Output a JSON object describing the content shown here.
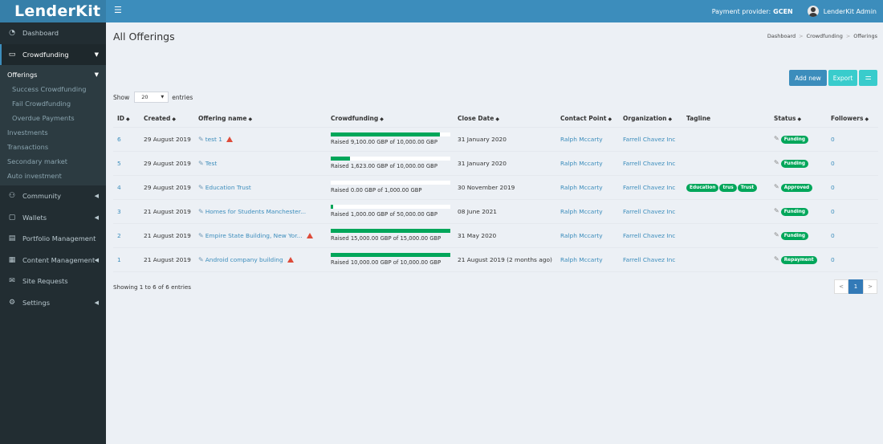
{
  "app": {
    "logo": "LenderKit"
  },
  "header": {
    "menu_icon": "hamburger-icon",
    "payment_label": "Payment provider:",
    "payment_value": "GCEN",
    "user_name": "LenderKit Admin"
  },
  "sidebar": {
    "items": [
      {
        "label": "Dashboard",
        "icon": "dashboard-icon"
      },
      {
        "label": "Crowdfunding",
        "icon": "crowdfunding-icon"
      },
      {
        "label": "Community",
        "icon": "community-icon"
      },
      {
        "label": "Wallets",
        "icon": "wallet-icon"
      },
      {
        "label": "Portfolio Management",
        "icon": "portfolio-icon"
      },
      {
        "label": "Content Management",
        "icon": "content-icon"
      },
      {
        "label": "Site Requests",
        "icon": "mail-icon"
      },
      {
        "label": "Settings",
        "icon": "gear-icon"
      }
    ],
    "submenu": {
      "offerings": "Offerings",
      "success": "Success Crowdfunding",
      "fail": "Fail Crowdfunding",
      "overdue": "Overdue Payments",
      "investments": "Investments",
      "transactions": "Transactions",
      "secondary": "Secondary market",
      "auto": "Auto investment"
    }
  },
  "page": {
    "title": "All Offerings",
    "breadcrumb": [
      "Dashboard",
      "Crowdfunding",
      "Offerings"
    ],
    "add_new": "Add new",
    "export": "Export",
    "show_label": "Show",
    "entries_value": "20",
    "entries_label": "entries",
    "footer_info": "Showing 1 to 6 of 6 entries"
  },
  "table": {
    "headers": {
      "id": "ID",
      "created": "Created",
      "name": "Offering name",
      "crowdfunding": "Crowdfunding",
      "close": "Close Date",
      "contact": "Contact Point",
      "org": "Organization",
      "tagline": "Tagline",
      "status": "Status",
      "followers": "Followers"
    },
    "rows": [
      {
        "id": "6",
        "created": "29 August 2019",
        "name": "test 1",
        "progress": 0.91,
        "raised": "Raised 9,100.00 GBP of 10,000.00 GBP",
        "close": "31 January 2020",
        "contact": "Ralph Mccarty",
        "org": "Farrell Chavez Inc",
        "tags": [],
        "status": "Funding",
        "followers": "0"
      },
      {
        "id": "5",
        "created": "29 August 2019",
        "name": "Test",
        "progress": 0.1623,
        "raised": "Raised 1,623.00 GBP of 10,000.00 GBP",
        "close": "31 January 2020",
        "contact": "Ralph Mccarty",
        "org": "Farrell Chavez Inc",
        "tags": [],
        "status": "Funding",
        "followers": "0"
      },
      {
        "id": "4",
        "created": "29 August 2019",
        "name": "Education Trust",
        "progress": 0,
        "raised": "Raised 0.00 GBP of 1,000.00 GBP",
        "close": "30 November 2019",
        "contact": "Ralph Mccarty",
        "org": "Farrell Chavez Inc",
        "tags": [
          "Education",
          "trus",
          "Trust"
        ],
        "status": "Approved",
        "followers": "0"
      },
      {
        "id": "3",
        "created": "21 August 2019",
        "name": "Homes for Students Manchester...",
        "progress": 0.02,
        "raised": "Raised 1,000.00 GBP of 50,000.00 GBP",
        "close": "08 June 2021",
        "contact": "Ralph Mccarty",
        "org": "Farrell Chavez Inc",
        "tags": [],
        "status": "Funding",
        "followers": "0"
      },
      {
        "id": "2",
        "created": "21 August 2019",
        "name": "Empire State Building, New Yor...",
        "progress": 1,
        "raised": "Raised 15,000.00 GBP of 15,000.00 GBP",
        "close": "31 May 2020",
        "contact": "Ralph Mccarty",
        "org": "Farrell Chavez Inc",
        "tags": [],
        "status": "Funding",
        "followers": "0"
      },
      {
        "id": "1",
        "created": "21 August 2019",
        "name": "Android company building",
        "progress": 1,
        "raised": "Raised 10,000.00 GBP of 10,000.00 GBP",
        "close": "21 August 2019 (2 months ago)",
        "contact": "Ralph Mccarty",
        "org": "Farrell Chavez Inc",
        "tags": [],
        "status": "Repayment",
        "followers": "0"
      }
    ]
  },
  "pagination": {
    "prev": "<",
    "current": "1",
    "next": ">"
  },
  "colors": {
    "accent": "#3c8dbc",
    "sidebar": "#222d32",
    "success": "#00a65a",
    "danger": "#dd4b39",
    "teal": "#39cccc"
  }
}
